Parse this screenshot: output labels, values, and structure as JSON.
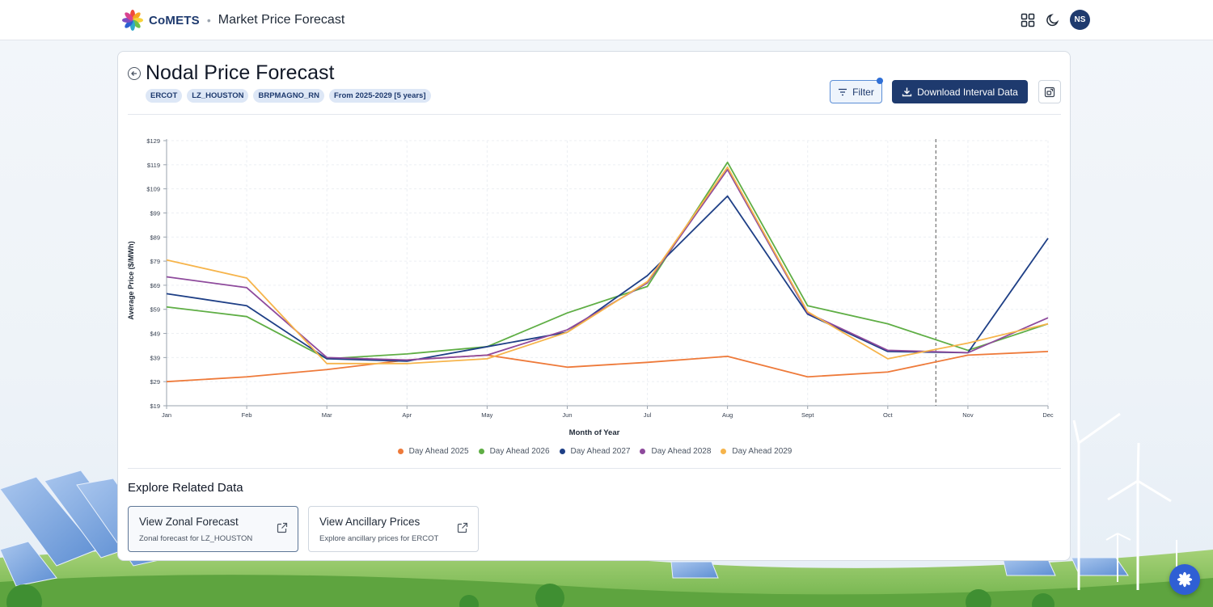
{
  "header": {
    "brand": "CoMETS",
    "separator": "•",
    "page_title": "Market Price Forecast",
    "avatar_initials": "NS"
  },
  "card": {
    "title": "Nodal Price Forecast",
    "chips": [
      "ERCOT",
      "LZ_HOUSTON",
      "BRPMAGNO_RN",
      "From 2025-2029 [5 years]"
    ],
    "filter_label": "Filter",
    "download_label": "Download Interval Data"
  },
  "chart_data": {
    "type": "line",
    "xlabel": "Month of Year",
    "ylabel": "Average Price ($/MWh)",
    "categories": [
      "Jan",
      "Feb",
      "Mar",
      "Apr",
      "May",
      "Jun",
      "Jul",
      "Aug",
      "Sept",
      "Oct",
      "Nov",
      "Dec"
    ],
    "yticks": [
      "$19",
      "$29",
      "$39",
      "$49",
      "$59",
      "$69",
      "$79",
      "$89",
      "$99",
      "$109",
      "$119",
      "$129"
    ],
    "ylim": [
      19,
      129
    ],
    "grid": true,
    "legend_position": "bottom",
    "marker_category": "Oct",
    "marker_offset": 0.6,
    "series": [
      {
        "name": "Day Ahead 2025",
        "color": "#ee7a3a",
        "values": [
          29,
          31,
          34,
          38,
          40,
          35,
          37,
          39.5,
          31,
          33,
          40,
          41.5
        ]
      },
      {
        "name": "Day Ahead 2026",
        "color": "#5fae45",
        "values": [
          60,
          56,
          38.5,
          40.5,
          43.5,
          57.5,
          68.5,
          120,
          60.5,
          53,
          42,
          53
        ]
      },
      {
        "name": "Day Ahead 2027",
        "color": "#1e3f86",
        "values": [
          65.5,
          60.5,
          38.5,
          37.5,
          43.5,
          49.5,
          73,
          106,
          57,
          41.5,
          41,
          88.5
        ]
      },
      {
        "name": "Day Ahead 2028",
        "color": "#8e4a9c",
        "values": [
          72.5,
          68,
          39,
          38,
          40,
          50.5,
          70,
          117,
          57.5,
          42,
          41,
          55.5
        ]
      },
      {
        "name": "Day Ahead 2029",
        "color": "#f6b44b",
        "values": [
          79.5,
          72,
          36.5,
          36.5,
          38.5,
          49.5,
          70.5,
          118,
          58,
          38.5,
          45,
          53
        ]
      }
    ]
  },
  "related": {
    "title": "Explore Related Data",
    "cards": [
      {
        "title": "View Zonal Forecast",
        "subtitle": "Zonal forecast for LZ_HOUSTON"
      },
      {
        "title": "View Ancillary Prices",
        "subtitle": "Explore ancillary prices for ERCOT"
      }
    ]
  },
  "icons": {
    "back": "arrow-left-circle-icon",
    "filter": "filter-icon",
    "download": "download-icon",
    "expand": "expand-icon",
    "apps": "grid-apps-icon",
    "theme": "moon-icon",
    "external": "external-link-icon",
    "chatbot": "chatbot-flower-icon"
  }
}
